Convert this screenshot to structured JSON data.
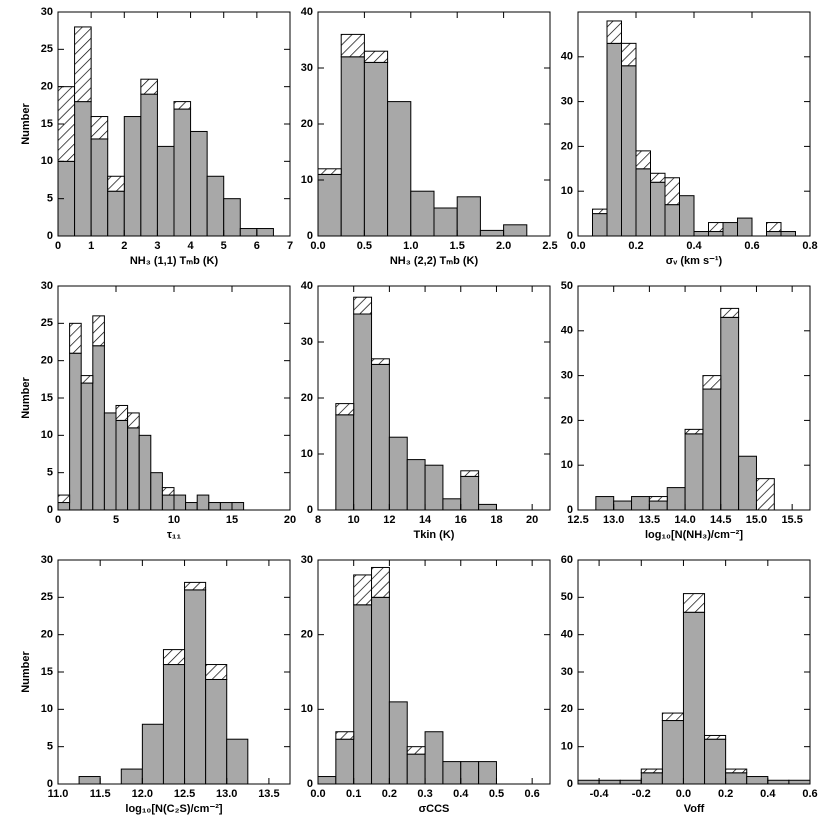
{
  "chart_data": [
    {
      "type": "histogram",
      "xlabel": "NH₃ (1,1) Tₘb (K)",
      "ylabel": "Number",
      "bins": [
        0,
        0.5,
        1,
        1.5,
        2,
        2.5,
        3,
        3.5,
        4,
        4.5,
        5,
        5.5,
        6,
        6.5
      ],
      "series": [
        {
          "color": "#a8a8a8",
          "values": [
            10,
            18,
            13,
            6,
            16,
            19,
            12,
            17,
            14,
            8,
            5,
            1,
            1
          ]
        },
        {
          "color": "#000000",
          "hatch": true,
          "values": [
            10,
            10,
            3,
            2,
            0,
            2,
            0,
            1,
            0,
            0,
            0,
            0,
            0
          ]
        }
      ],
      "xlim": [
        0,
        7
      ],
      "xticks": [
        0,
        1,
        2,
        3,
        4,
        5,
        6,
        7
      ],
      "ylim": [
        0,
        30
      ],
      "yticks": [
        0,
        5,
        10,
        15,
        20,
        25,
        30
      ]
    },
    {
      "type": "histogram",
      "xlabel": "NH₃ (2,2) Tₘb (K)",
      "bins": [
        0,
        0.25,
        0.5,
        0.75,
        1.0,
        1.25,
        1.5,
        1.75,
        2.0,
        2.25
      ],
      "series": [
        {
          "color": "#a8a8a8",
          "values": [
            11,
            32,
            31,
            24,
            8,
            5,
            7,
            1,
            2
          ]
        },
        {
          "color": "#000000",
          "hatch": true,
          "values": [
            1,
            4,
            2,
            0,
            0,
            0,
            0,
            0,
            0
          ]
        }
      ],
      "xlim": [
        0,
        2.5
      ],
      "xticks": [
        {
          "value": 0,
          "label": "0.0"
        },
        0.5,
        {
          "value": 1,
          "label": "1.0"
        },
        1.5,
        {
          "value": 2,
          "label": "2.0"
        },
        2.5
      ],
      "ylim": [
        0,
        40
      ],
      "yticks": [
        0,
        10,
        20,
        30,
        40
      ]
    },
    {
      "type": "histogram",
      "xlabel": "σᵥ (km s⁻¹)",
      "bins": [
        0.05,
        0.1,
        0.15,
        0.2,
        0.25,
        0.3,
        0.35,
        0.4,
        0.45,
        0.5,
        0.55,
        0.6,
        0.65,
        0.7,
        0.75
      ],
      "series": [
        {
          "color": "#a8a8a8",
          "values": [
            5,
            43,
            38,
            15,
            12,
            7,
            9,
            1,
            1,
            3,
            4,
            0,
            1,
            1
          ]
        },
        {
          "color": "#000000",
          "hatch": true,
          "values": [
            1,
            5,
            5,
            4,
            2,
            6,
            0,
            0,
            2,
            0,
            0,
            0,
            2,
            0
          ]
        }
      ],
      "xlim": [
        0,
        0.8
      ],
      "xticks": [
        {
          "value": 0,
          "label": "0.0"
        },
        0.2,
        0.4,
        0.6,
        0.8
      ],
      "ylim": [
        0,
        50
      ],
      "yticks": [
        0,
        10,
        20,
        30,
        40
      ]
    },
    {
      "type": "histogram",
      "xlabel": "τ₁₁",
      "ylabel": "Number",
      "bins": [
        0,
        1,
        2,
        3,
        4,
        5,
        6,
        7,
        8,
        9,
        10,
        11,
        12,
        13,
        14,
        15,
        16
      ],
      "series": [
        {
          "color": "#a8a8a8",
          "values": [
            1,
            21,
            17,
            22,
            13,
            12,
            11,
            10,
            5,
            2,
            2,
            1,
            2,
            1,
            1,
            1
          ]
        },
        {
          "color": "#000000",
          "hatch": true,
          "values": [
            1,
            4,
            1,
            4,
            0,
            2,
            2,
            0,
            0,
            1,
            0,
            0,
            0,
            0,
            0,
            0
          ]
        }
      ],
      "xlim": [
        0,
        20
      ],
      "xticks": [
        0,
        5,
        10,
        15,
        20
      ],
      "ylim": [
        0,
        30
      ],
      "yticks": [
        0,
        5,
        10,
        15,
        20,
        25,
        30
      ]
    },
    {
      "type": "histogram",
      "xlabel": "Tkin (K)",
      "bins": [
        9,
        10,
        11,
        12,
        13,
        14,
        15,
        16,
        17,
        18
      ],
      "series": [
        {
          "color": "#a8a8a8",
          "values": [
            17,
            35,
            26,
            13,
            9,
            8,
            2,
            6,
            1
          ]
        },
        {
          "color": "#000000",
          "hatch": true,
          "values": [
            2,
            3,
            1,
            0,
            0,
            0,
            0,
            1,
            0
          ]
        }
      ],
      "xlim": [
        8,
        21
      ],
      "xticks": [
        8,
        10,
        12,
        14,
        16,
        18,
        20
      ],
      "ylim": [
        0,
        40
      ],
      "yticks": [
        0,
        10,
        20,
        30,
        40
      ]
    },
    {
      "type": "histogram",
      "xlabel": "log₁₀[N(NH₃)/cm⁻²]",
      "bins": [
        12.75,
        13.0,
        13.25,
        13.5,
        13.75,
        14.0,
        14.25,
        14.5,
        14.75,
        15.0,
        15.25
      ],
      "series": [
        {
          "color": "#a8a8a8",
          "values": [
            3,
            2,
            3,
            2,
            5,
            17,
            27,
            43,
            12,
            0
          ]
        },
        {
          "color": "#000000",
          "hatch": true,
          "values": [
            0,
            0,
            0,
            1,
            0,
            1,
            3,
            2,
            0,
            7
          ]
        }
      ],
      "xlim": [
        12.5,
        15.75
      ],
      "xticks": [
        12.5,
        {
          "value": 13,
          "label": "13.0"
        },
        13.5,
        {
          "value": 14,
          "label": "14.0"
        },
        14.5,
        {
          "value": 15,
          "label": "15.0"
        },
        15.5
      ],
      "ylim": [
        0,
        50
      ],
      "yticks": [
        0,
        10,
        20,
        30,
        40,
        50
      ]
    },
    {
      "type": "histogram",
      "xlabel": "log₁₀[N(C₂S)/cm⁻²]",
      "ylabel": "Number",
      "bins": [
        11.25,
        11.5,
        11.75,
        12.0,
        12.25,
        12.5,
        12.75,
        13.0,
        13.25
      ],
      "series": [
        {
          "color": "#a8a8a8",
          "values": [
            1,
            0,
            2,
            8,
            16,
            26,
            14,
            6
          ]
        },
        {
          "color": "#000000",
          "hatch": true,
          "values": [
            0,
            0,
            0,
            0,
            2,
            1,
            2,
            0
          ]
        }
      ],
      "xlim": [
        11,
        13.75
      ],
      "xticks": [
        {
          "value": 11,
          "label": "11.0"
        },
        11.5,
        {
          "value": 12,
          "label": "12.0"
        },
        12.5,
        {
          "value": 13,
          "label": "13.0"
        },
        13.5
      ],
      "ylim": [
        0,
        30
      ],
      "yticks": [
        0,
        5,
        10,
        15,
        20,
        25,
        30
      ]
    },
    {
      "type": "histogram",
      "xlabel": "σCCS",
      "bins": [
        0,
        0.05,
        0.1,
        0.15,
        0.2,
        0.25,
        0.3,
        0.35,
        0.4,
        0.45,
        0.5
      ],
      "series": [
        {
          "color": "#a8a8a8",
          "values": [
            1,
            6,
            24,
            25,
            11,
            4,
            7,
            3,
            3,
            3
          ]
        },
        {
          "color": "#000000",
          "hatch": true,
          "values": [
            0,
            1,
            4,
            4,
            0,
            1,
            0,
            0,
            0,
            0
          ]
        }
      ],
      "xlim": [
        0,
        0.65
      ],
      "xticks": [
        {
          "value": 0,
          "label": "0.0"
        },
        0.1,
        0.2,
        0.3,
        0.4,
        0.5,
        0.6
      ],
      "ylim": [
        0,
        30
      ],
      "yticks": [
        0,
        10,
        20,
        30
      ]
    },
    {
      "type": "histogram",
      "xlabel": "Voff",
      "bins": [
        -0.5,
        -0.4,
        -0.3,
        -0.2,
        -0.1,
        0,
        0.1,
        0.2,
        0.3,
        0.4,
        0.5,
        0.6
      ],
      "series": [
        {
          "color": "#a8a8a8",
          "values": [
            1,
            1,
            1,
            3,
            17,
            46,
            12,
            3,
            2,
            1,
            1
          ]
        },
        {
          "color": "#000000",
          "hatch": true,
          "values": [
            0,
            0,
            0,
            1,
            2,
            5,
            1,
            1,
            0,
            0,
            0
          ]
        }
      ],
      "xlim": [
        -0.5,
        0.6
      ],
      "xticks": [
        -0.4,
        -0.2,
        {
          "value": 0,
          "label": "0.0"
        },
        0.2,
        0.4,
        0.6
      ],
      "ylim": [
        0,
        60
      ],
      "yticks": [
        0,
        10,
        20,
        30,
        40,
        50,
        60
      ]
    }
  ]
}
